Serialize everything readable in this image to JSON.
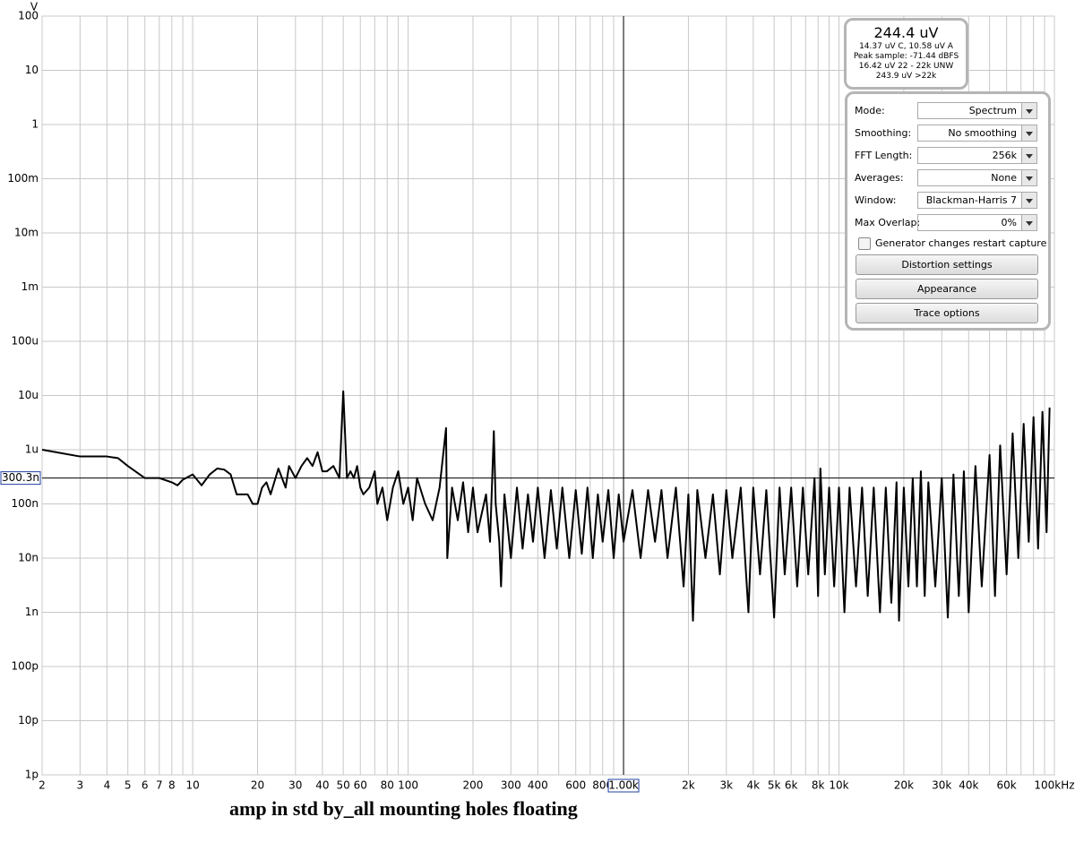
{
  "chart_data": {
    "type": "line",
    "title": "amp in std by_all mounting holes floating",
    "y_unit": "V",
    "log_x": true,
    "log_y": true,
    "grid": true,
    "color": "#000000",
    "xlim": [
      2,
      100000
    ],
    "ylim": [
      1e-12,
      100
    ],
    "xticks": [
      2,
      3,
      4,
      5,
      6,
      7,
      8,
      10,
      20,
      30,
      40,
      50,
      60,
      80,
      100,
      200,
      300,
      400,
      600,
      800,
      {
        "value": 2000,
        "label": "2k"
      },
      {
        "value": 3000,
        "label": "3k"
      },
      {
        "value": 4000,
        "label": "4k"
      },
      {
        "value": 5000,
        "label": "5k"
      },
      {
        "value": 6000,
        "label": "6k"
      },
      {
        "value": 8000,
        "label": "8k"
      },
      {
        "value": 10000,
        "label": "10k"
      },
      {
        "value": 20000,
        "label": "20k"
      },
      {
        "value": 30000,
        "label": "30k"
      },
      {
        "value": 40000,
        "label": "40k"
      },
      {
        "value": 60000,
        "label": "60k"
      },
      {
        "value": 100000,
        "label": "100kHz"
      }
    ],
    "x_minor_ticks": [
      9,
      70,
      90,
      500,
      700,
      900,
      1000,
      7000,
      9000,
      50000,
      70000,
      80000,
      90000
    ],
    "yticks": [
      100,
      10,
      1,
      {
        "value": 0.1,
        "label": "100m"
      },
      {
        "value": 0.01,
        "label": "10m"
      },
      {
        "value": 0.001,
        "label": "1m"
      },
      {
        "value": 0.0001,
        "label": "100u"
      },
      {
        "value": 1e-05,
        "label": "10u"
      },
      {
        "value": 1e-06,
        "label": "1u"
      },
      {
        "value": 1e-07,
        "label": "100n"
      },
      {
        "value": 1e-08,
        "label": "10n"
      },
      {
        "value": 1e-09,
        "label": "1n"
      },
      {
        "value": 1e-10,
        "label": "100p"
      },
      {
        "value": 1e-11,
        "label": "10p"
      },
      {
        "value": 1e-12,
        "label": "1p"
      }
    ],
    "cursor": {
      "x": {
        "value": 1000,
        "label": "1.00k"
      },
      "y": {
        "value": 3.003e-07,
        "label": "300.3n"
      }
    },
    "x": [
      2,
      3,
      4,
      4.5,
      5,
      6,
      7,
      8,
      8.5,
      9,
      10,
      11,
      12,
      13,
      14,
      15,
      16,
      18,
      19,
      20,
      21,
      22,
      23,
      25,
      27,
      28,
      30,
      32,
      34,
      36,
      38,
      40,
      42,
      45,
      48,
      50,
      52,
      54,
      56,
      58,
      60,
      62,
      66,
      70,
      72,
      76,
      80,
      85,
      90,
      95,
      100,
      105,
      110,
      120,
      130,
      140,
      150,
      152,
      160,
      170,
      180,
      190,
      200,
      210,
      230,
      240,
      250,
      255,
      265,
      270,
      280,
      300,
      320,
      340,
      360,
      380,
      400,
      430,
      460,
      490,
      520,
      560,
      600,
      640,
      680,
      720,
      760,
      800,
      850,
      900,
      950,
      1000,
      1100,
      1200,
      1300,
      1400,
      1500,
      1600,
      1750,
      1900,
      2000,
      2100,
      2200,
      2400,
      2600,
      2800,
      3000,
      3200,
      3500,
      3800,
      4000,
      4300,
      4600,
      5000,
      5300,
      5600,
      6000,
      6400,
      6800,
      7200,
      7700,
      8000,
      8200,
      8600,
      9000,
      9500,
      10000,
      10600,
      11200,
      12000,
      12800,
      13600,
      14500,
      15500,
      16500,
      17500,
      18500,
      19000,
      20000,
      21000,
      22000,
      23000,
      24000,
      25000,
      26000,
      28000,
      30000,
      32000,
      34000,
      36000,
      38000,
      40000,
      43000,
      46000,
      50000,
      53000,
      56000,
      60000,
      64000,
      68000,
      72000,
      76000,
      80000,
      84000,
      88000,
      92000,
      95000
    ],
    "values": [
      1e-06,
      7.5e-07,
      7.5e-07,
      7e-07,
      5e-07,
      3e-07,
      3e-07,
      2.5e-07,
      2.2e-07,
      2.8e-07,
      3.5e-07,
      2.2e-07,
      3.5e-07,
      4.5e-07,
      4.3e-07,
      3.5e-07,
      1.5e-07,
      1.5e-07,
      1e-07,
      1e-07,
      2e-07,
      2.5e-07,
      1.5e-07,
      4.5e-07,
      2e-07,
      5e-07,
      3e-07,
      5e-07,
      7e-07,
      5e-07,
      9e-07,
      4e-07,
      4e-07,
      5e-07,
      3e-07,
      1.2e-05,
      3e-07,
      4e-07,
      3e-07,
      5e-07,
      2e-07,
      1.5e-07,
      2e-07,
      4e-07,
      1e-07,
      2e-07,
      5e-08,
      2e-07,
      4e-07,
      1e-07,
      2e-07,
      5e-08,
      3e-07,
      1e-07,
      5e-08,
      2e-07,
      2.5e-06,
      1e-08,
      2e-07,
      5e-08,
      2.5e-07,
      3e-08,
      2e-07,
      3e-08,
      1.5e-07,
      2e-08,
      2.2e-06,
      1e-07,
      2e-08,
      3e-09,
      1.5e-07,
      1e-08,
      2e-07,
      1.5e-08,
      1.5e-07,
      2e-08,
      2e-07,
      1e-08,
      1.8e-07,
      1.5e-08,
      2e-07,
      1e-08,
      1.8e-07,
      1.2e-08,
      2e-07,
      1e-08,
      1.5e-07,
      2e-08,
      1.8e-07,
      1e-08,
      1.5e-07,
      2e-08,
      1.8e-07,
      1e-08,
      1.8e-07,
      2e-08,
      1.8e-07,
      1e-08,
      2e-07,
      3e-09,
      1.5e-07,
      7e-10,
      1.8e-07,
      1e-08,
      1.5e-07,
      5e-09,
      1.8e-07,
      1e-08,
      2e-07,
      1e-09,
      2e-07,
      5e-09,
      1.8e-07,
      8e-10,
      2e-07,
      5e-09,
      2e-07,
      3e-09,
      2e-07,
      5e-09,
      3e-07,
      2e-09,
      4.5e-07,
      5e-09,
      2e-07,
      3e-09,
      2e-07,
      1e-09,
      2e-07,
      3e-09,
      2e-07,
      2e-09,
      2e-07,
      1e-09,
      2e-07,
      1.5e-09,
      2.5e-07,
      7e-10,
      2e-07,
      3e-09,
      3e-07,
      3e-09,
      4e-07,
      2e-09,
      2.5e-07,
      3e-09,
      3e-07,
      8e-10,
      3.5e-07,
      2e-09,
      4e-07,
      1e-09,
      5e-07,
      3e-09,
      8e-07,
      2e-09,
      1.2e-06,
      5e-09,
      2e-06,
      1e-08,
      3e-06,
      2e-08,
      4e-06,
      1.5e-08,
      5e-06,
      3e-08,
      6e-06
    ]
  },
  "panel": {
    "readout": {
      "main": "244.4 uV",
      "lines": [
        "14.37 uV C, 10.58 uV A",
        "Peak sample: -71.44 dBFS",
        "16.42 uV 22 - 22k UNW",
        "243.9 uV >22k"
      ]
    },
    "settings": [
      {
        "label": "Mode:",
        "value": "Spectrum"
      },
      {
        "label": "Smoothing:",
        "value": "No  smoothing"
      },
      {
        "label": "FFT Length:",
        "value": "256k"
      },
      {
        "label": "Averages:",
        "value": "None"
      },
      {
        "label": "Window:",
        "value": "Blackman-Harris 7"
      },
      {
        "label": "Max Overlap:",
        "value": "0%"
      }
    ],
    "checkbox": "Generator changes restart capture",
    "buttons": [
      "Distortion settings",
      "Appearance",
      "Trace options"
    ]
  }
}
